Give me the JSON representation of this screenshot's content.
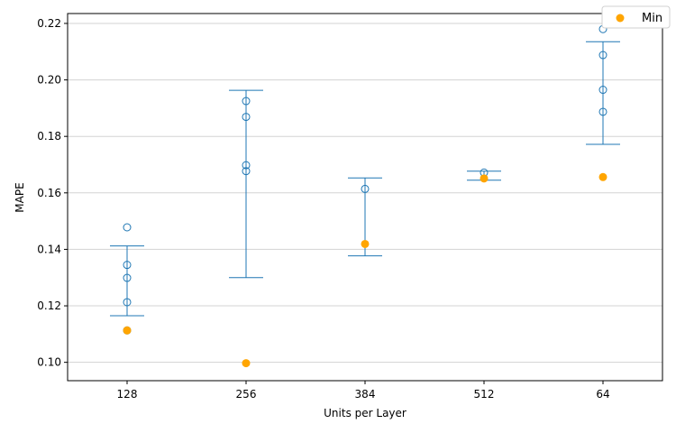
{
  "chart_data": {
    "type": "scatter",
    "xlabel": "Units per Layer",
    "ylabel": "MAPE",
    "categories": [
      "128",
      "256",
      "384",
      "512",
      "64"
    ],
    "ylim": [
      0.0935,
      0.2235
    ],
    "yticks": [
      0.1,
      0.12,
      0.14,
      0.16,
      0.18,
      0.2,
      0.22
    ],
    "grid": "horizontal",
    "legend": {
      "placement": "top-right",
      "entries": [
        "Min"
      ]
    },
    "colors": {
      "error_bar": "#1f77b4",
      "points": "#1f77b4",
      "min": "#ffa500",
      "grid": "#d3d3d3"
    },
    "series": [
      {
        "category": "128",
        "error_bar": [
          0.1165,
          0.1412
        ],
        "points": [
          0.1478,
          0.1345,
          0.1299,
          0.1213,
          0.1113
        ],
        "min": 0.1113
      },
      {
        "category": "256",
        "error_bar": [
          0.13,
          0.1963
        ],
        "points": [
          0.1925,
          0.1869,
          0.1698,
          0.1677
        ],
        "min": 0.0997
      },
      {
        "category": "384",
        "error_bar": [
          0.1377,
          0.1653
        ],
        "points": [
          0.1614
        ],
        "min": 0.1419
      },
      {
        "category": "512",
        "error_bar": [
          0.1645,
          0.1677
        ],
        "points": [
          0.1672
        ],
        "min": 0.1651
      },
      {
        "category": "64",
        "error_bar": [
          0.1772,
          0.2135
        ],
        "points": [
          0.218,
          0.2088,
          0.1965,
          0.1887
        ],
        "min": 0.1656
      }
    ]
  }
}
